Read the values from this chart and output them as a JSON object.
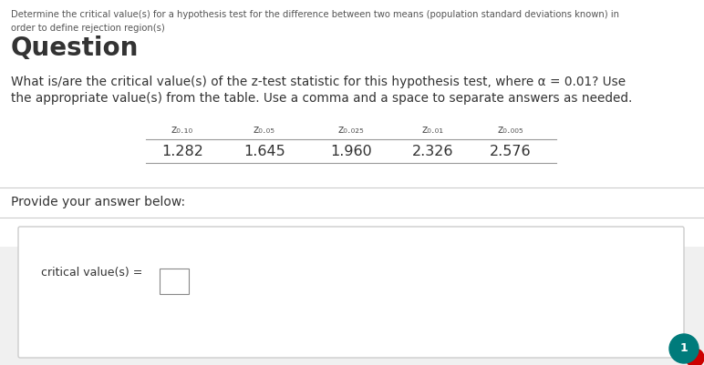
{
  "bg_color": "#f0f0f0",
  "top_section_bg": "#ffffff",
  "header_text": "Determine the critical value(s) for a hypothesis test for the difference between two means (population standard deviations known) in",
  "header_text2": "order to define rejection region(s)",
  "question_label": "Question",
  "body_text_line1": "What is/are the critical value(s) of the z-test statistic for this hypothesis test, where α = 0.01? Use",
  "body_text_line2": "the appropriate value(s) from the table. Use a comma and a space to separate answers as needed.",
  "table_headers": [
    "z₀.₁₀",
    "z₀.₀₅",
    "z₀.₀₂₅",
    "z₀.₀₁",
    "z₀.₀₀₅"
  ],
  "table_values": [
    "1.282",
    "1.645",
    "1.960",
    "2.326",
    "2.576"
  ],
  "provide_text": "Provide your answer below:",
  "answer_label": "critical value(s) =",
  "bottom_circle_color": "#007b7b",
  "bottom_circle_number": "1",
  "font_color": "#333333",
  "light_font_color": "#555555",
  "border_color": "#cccccc",
  "box_bg": "#ffffff",
  "table_line_color": "#999999",
  "sep_line_color": "#cccccc"
}
